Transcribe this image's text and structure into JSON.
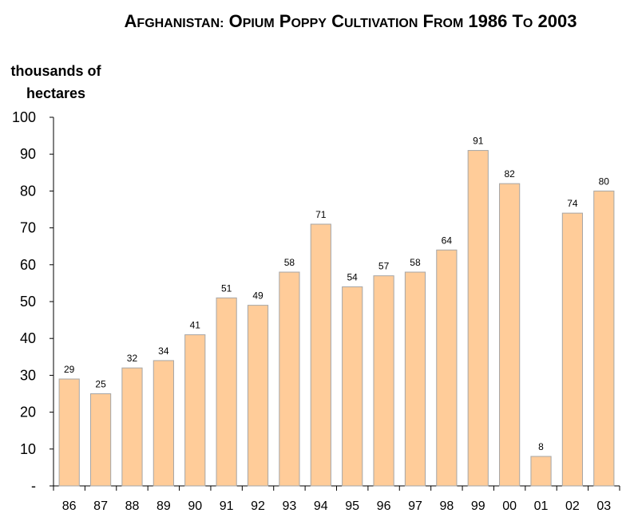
{
  "chart_data": {
    "type": "bar",
    "title": "AFGHANISTAN: OPIUM POPPY CULTIVATION FROM 1986 TO 2003",
    "title_display": "Afghanistan: opium poppy cultivation from 1986 to 2003",
    "ylabel": "thousands of hectares",
    "xlabel": "",
    "ylim": [
      0,
      100
    ],
    "y_ticks": [
      "-",
      "10",
      "20",
      "30",
      "40",
      "50",
      "60",
      "70",
      "80",
      "90",
      "100"
    ],
    "categories": [
      "86",
      "87",
      "88",
      "89",
      "90",
      "91",
      "92",
      "93",
      "94",
      "95",
      "96",
      "97",
      "98",
      "99",
      "00",
      "01",
      "02",
      "03"
    ],
    "values": [
      29,
      25,
      32,
      34,
      41,
      51,
      49,
      58,
      71,
      54,
      57,
      58,
      64,
      91,
      82,
      8,
      74,
      80
    ],
    "grid": false,
    "legend": "none",
    "bar_color": "#FFCC99",
    "bar_edge_color": "#A6A6A6"
  }
}
